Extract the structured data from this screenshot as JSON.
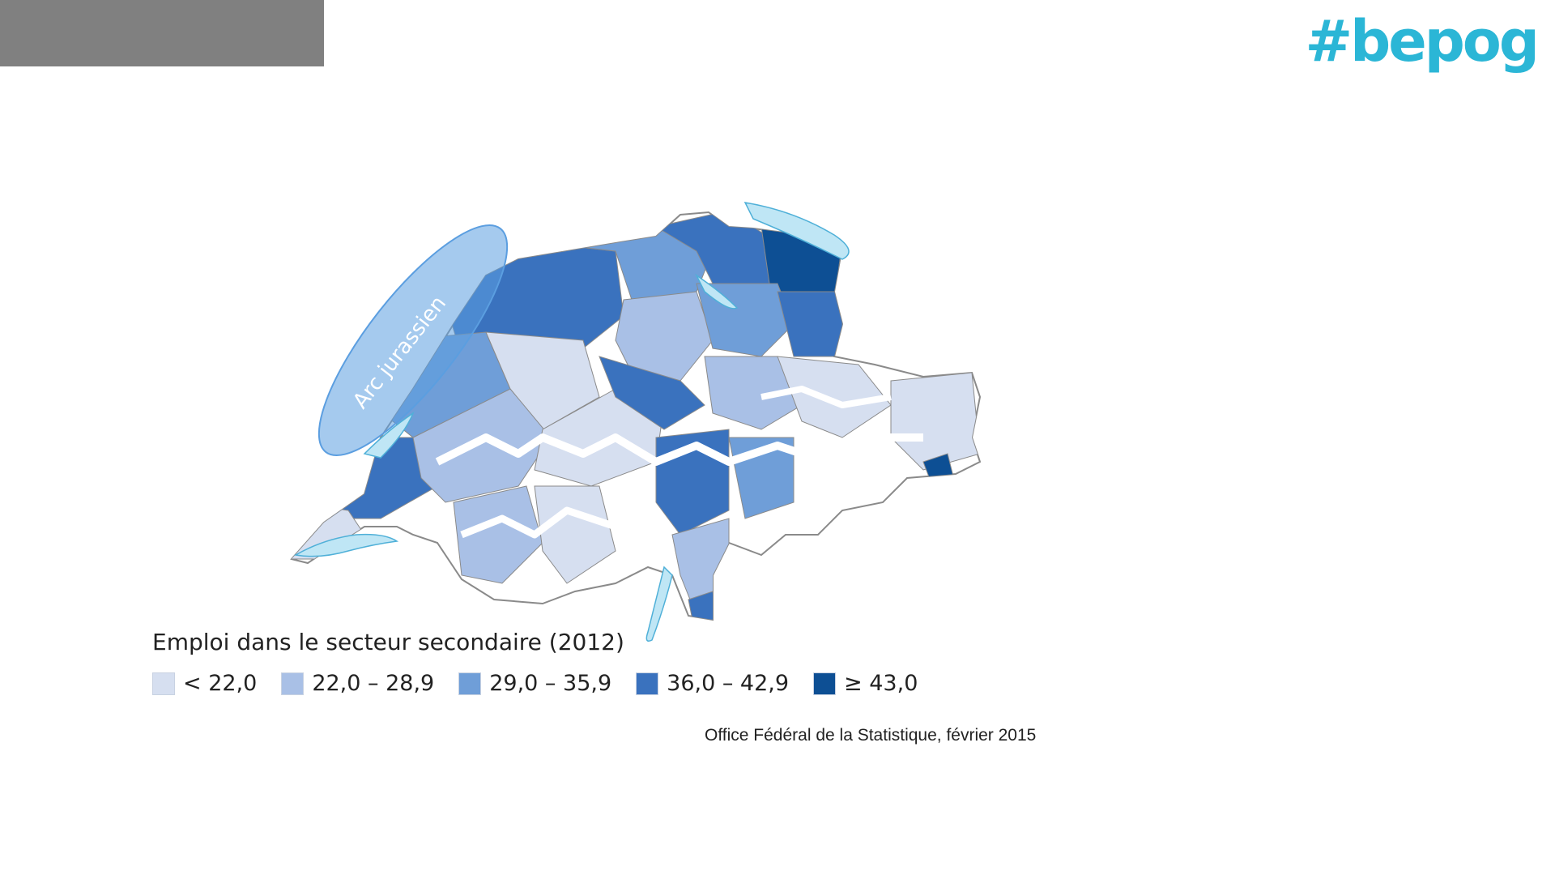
{
  "logo": {
    "text": "#bepog",
    "color": "#2bb6d6"
  },
  "map": {
    "annotation": "Arc jurassien",
    "annotation_color": "#5b9ee0",
    "lake_color": "#bfe6f5",
    "border_color": "#8a8a8a",
    "class_colors": [
      "#d6dff0",
      "#a9c0e6",
      "#6f9ed8",
      "#3a72be",
      "#0d4f94"
    ]
  },
  "legend": {
    "title": "Emploi dans le secteur secondaire (2012)",
    "items": [
      {
        "label": "< 22,0",
        "color": "#d6dff0"
      },
      {
        "label": "22,0 – 28,9",
        "color": "#a9c0e6"
      },
      {
        "label": "29,0 – 35,9",
        "color": "#6f9ed8"
      },
      {
        "label": "36,0 – 42,9",
        "color": "#3a72be"
      },
      {
        "label": "≥ 43,0",
        "color": "#0d4f94"
      }
    ]
  },
  "source": "Office Fédéral de la Statistique, février 2015"
}
